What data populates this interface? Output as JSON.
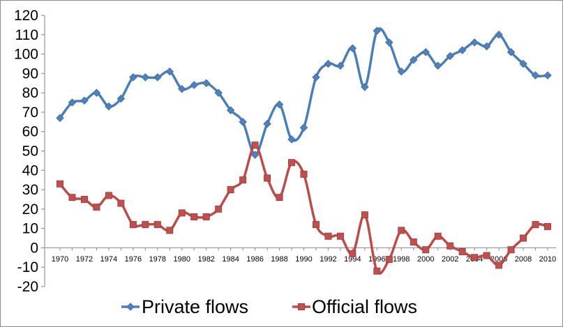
{
  "chart_data": {
    "type": "line",
    "title": "",
    "xlabel": "",
    "ylabel": "",
    "ylim": [
      -20,
      120
    ],
    "ytick_step": 10,
    "grid": false,
    "legend_position": "bottom",
    "x": [
      1970,
      1971,
      1972,
      1973,
      1974,
      1975,
      1976,
      1977,
      1978,
      1979,
      1980,
      1981,
      1982,
      1983,
      1984,
      1985,
      1986,
      1987,
      1988,
      1989,
      1990,
      1991,
      1992,
      1993,
      1994,
      1995,
      1996,
      1997,
      1998,
      1999,
      2000,
      2001,
      2002,
      2003,
      2004,
      2005,
      2006,
      2007,
      2008,
      2009,
      2010
    ],
    "x_tick_labels": [
      "1970",
      "1972",
      "1974",
      "1976",
      "1978",
      "1980",
      "1982",
      "1984",
      "1986",
      "1988",
      "1990",
      "1992",
      "1994",
      "1996",
      "1998",
      "2000",
      "2002",
      "2004",
      "2006",
      "2008",
      "2010"
    ],
    "series": [
      {
        "name": "Private flows",
        "color": "#4a7ebb",
        "marker_color": "#4f81bd",
        "marker": "diamond",
        "values": [
          67,
          75,
          76,
          80,
          73,
          77,
          88,
          88,
          88,
          91,
          82,
          84,
          85,
          80,
          71,
          65,
          48,
          64,
          74,
          56,
          62,
          88,
          95,
          94,
          103,
          83,
          112,
          106,
          91,
          97,
          101,
          94,
          99,
          102,
          106,
          104,
          110,
          101,
          95,
          89,
          89
        ]
      },
      {
        "name": "Official flows",
        "color": "#be4b48",
        "marker_color": "#c0504d",
        "marker": "square",
        "values": [
          33,
          26,
          25,
          21,
          27,
          23,
          12,
          12,
          12,
          9,
          18,
          16,
          16,
          20,
          30,
          35,
          53,
          36,
          26,
          44,
          38,
          12,
          6,
          6,
          -3,
          17,
          -12,
          -6,
          9,
          3,
          -1,
          6,
          1,
          -2,
          -5,
          -4,
          -9,
          -1,
          5,
          12,
          11
        ]
      }
    ]
  }
}
